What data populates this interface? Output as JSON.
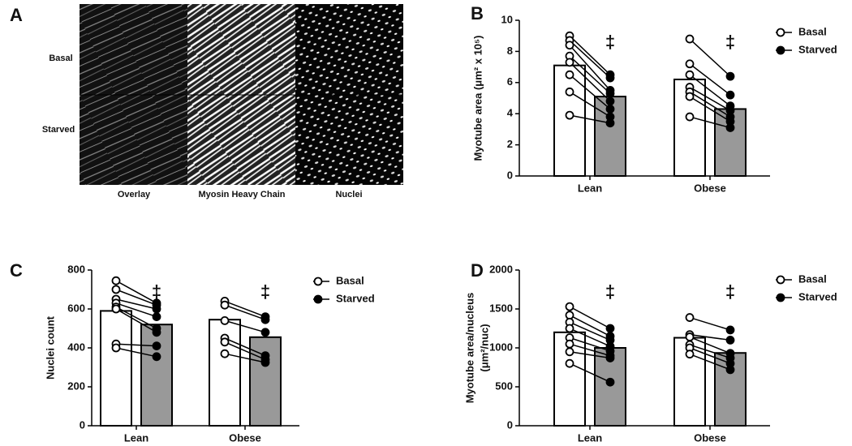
{
  "panel_a": {
    "label": "A",
    "rows": [
      "Basal",
      "Starved"
    ],
    "columns": [
      "Overlay",
      "Myosin Heavy Chain",
      "Nuclei"
    ]
  },
  "chart_data": [
    {
      "type": "bar",
      "panel": "B",
      "ylabel": "Myotube area (μm² x 10⁵)",
      "categories": [
        "Lean",
        "Obese"
      ],
      "series": [
        {
          "name": "Basal",
          "color": "#ffffff",
          "values": [
            7.1,
            6.2
          ],
          "points": [
            [
              9.0,
              8.7,
              8.4,
              7.7,
              7.3,
              6.5,
              5.4,
              3.9
            ],
            [
              8.8,
              7.2,
              6.5,
              5.7,
              5.4,
              5.1,
              3.8
            ]
          ]
        },
        {
          "name": "Starved",
          "color": "#999999",
          "values": [
            5.1,
            4.3
          ],
          "points": [
            [
              6.5,
              6.3,
              5.5,
              5.3,
              4.8,
              4.3,
              3.8,
              3.4
            ],
            [
              6.4,
              5.2,
              4.5,
              4.2,
              3.8,
              3.5,
              3.1
            ]
          ]
        }
      ],
      "ylim": [
        0,
        10
      ],
      "yticks": [
        0,
        2,
        4,
        6,
        8,
        10
      ],
      "annotations": [
        "‡",
        "‡"
      ],
      "legend": "right"
    },
    {
      "type": "bar",
      "panel": "C",
      "ylabel": "Nuclei count",
      "categories": [
        "Lean",
        "Obese"
      ],
      "series": [
        {
          "name": "Basal",
          "color": "#ffffff",
          "values": [
            590,
            545
          ],
          "points": [
            [
              745,
              700,
              650,
              630,
              610,
              600,
              420,
              400
            ],
            [
              640,
              620,
              540,
              450,
              430,
              370
            ]
          ]
        },
        {
          "name": "Starved",
          "color": "#999999",
          "values": [
            520,
            455
          ],
          "points": [
            [
              630,
              620,
              600,
              560,
              500,
              480,
              410,
              355
            ],
            [
              560,
              545,
              480,
              360,
              340,
              325
            ]
          ]
        }
      ],
      "ylim": [
        0,
        800
      ],
      "yticks": [
        0,
        200,
        400,
        600,
        800
      ],
      "annotations": [
        "‡",
        "‡"
      ],
      "legend": "right"
    },
    {
      "type": "bar",
      "panel": "D",
      "ylabel": [
        "Myotube area/nucleus",
        "(μm²/nuc)"
      ],
      "categories": [
        "Lean",
        "Obese"
      ],
      "series": [
        {
          "name": "Basal",
          "color": "#ffffff",
          "values": [
            1200,
            1130
          ],
          "points": [
            [
              1530,
              1420,
              1330,
              1250,
              1130,
              1050,
              950,
              800
            ],
            [
              1390,
              1170,
              1140,
              1040,
              1000,
              920
            ]
          ]
        },
        {
          "name": "Starved",
          "color": "#999999",
          "values": [
            1000,
            935
          ],
          "points": [
            [
              1250,
              1150,
              1100,
              1020,
              960,
              900,
              870,
              560
            ],
            [
              1230,
              1100,
              930,
              870,
              800,
              720
            ]
          ]
        }
      ],
      "ylim": [
        0,
        2000
      ],
      "yticks": [
        0,
        500,
        1000,
        1500,
        2000
      ],
      "annotations": [
        "‡",
        "‡"
      ],
      "legend": "right"
    }
  ]
}
